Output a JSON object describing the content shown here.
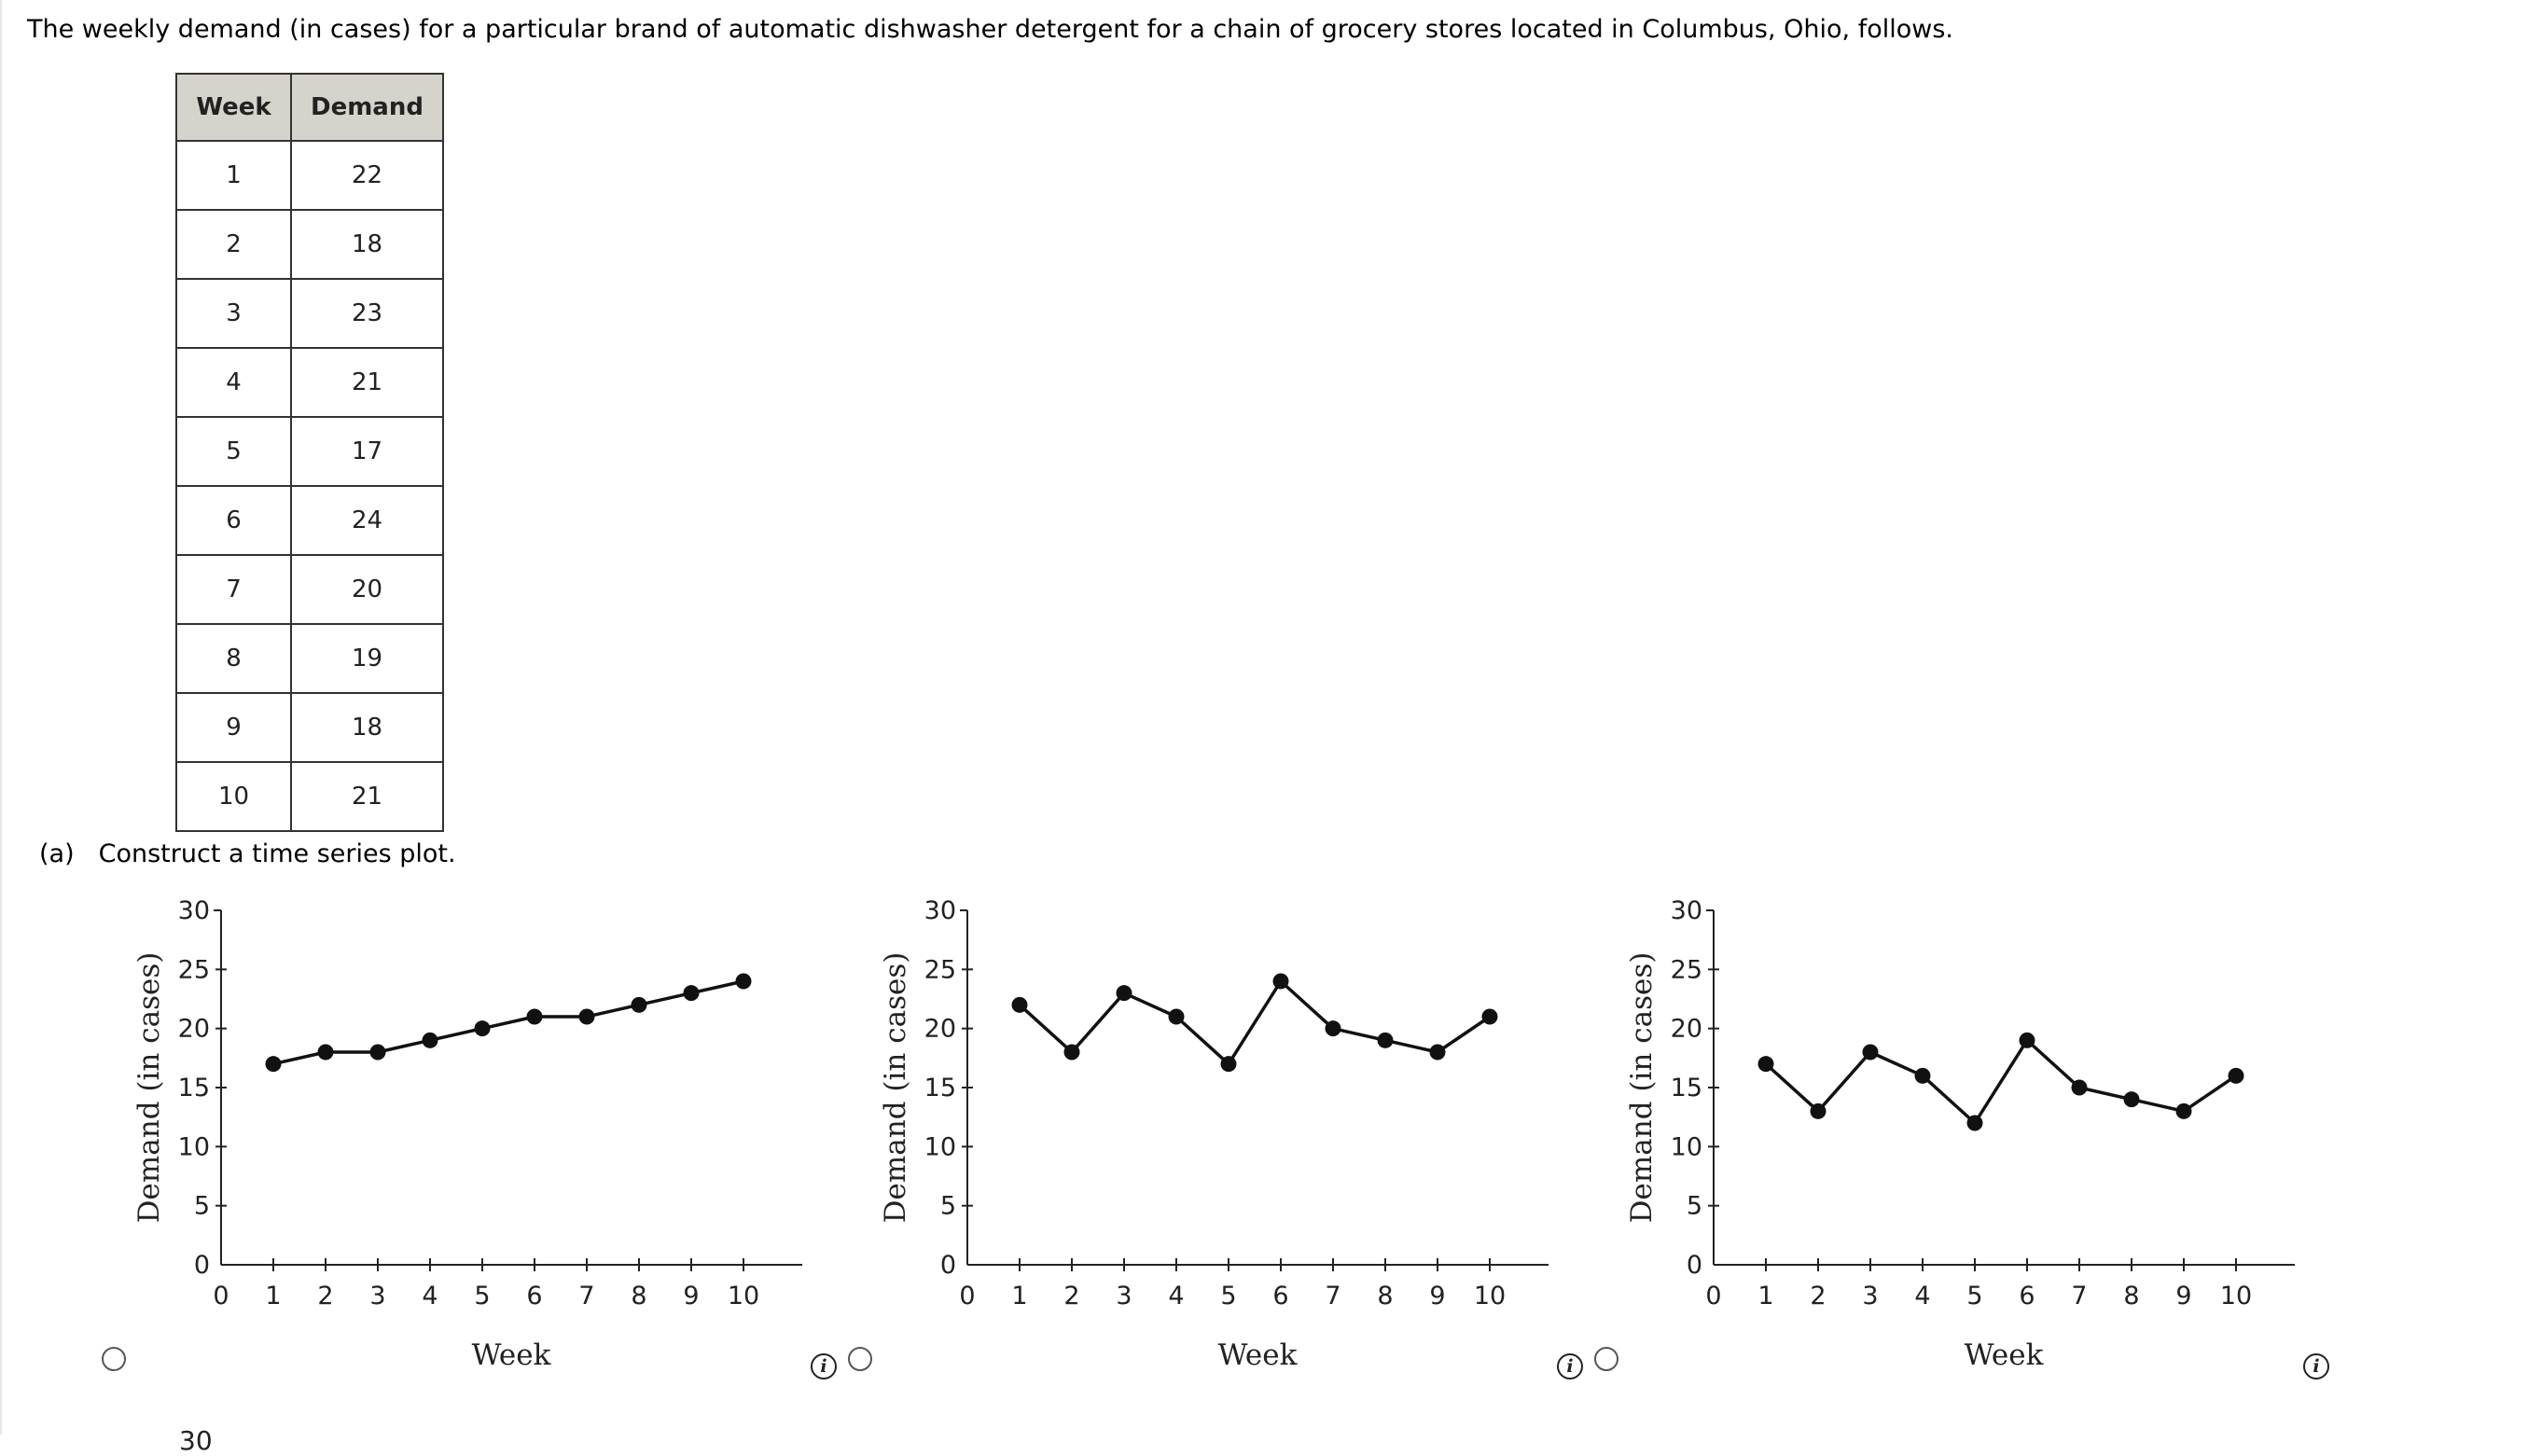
{
  "intro_text": "The weekly demand (in cases) for a particular brand of automatic dishwasher detergent for a chain of grocery stores located in Columbus, Ohio, follows.",
  "table": {
    "headers": [
      "Week",
      "Demand"
    ],
    "rows": [
      [
        "1",
        "22"
      ],
      [
        "2",
        "18"
      ],
      [
        "3",
        "23"
      ],
      [
        "4",
        "21"
      ],
      [
        "5",
        "17"
      ],
      [
        "6",
        "24"
      ],
      [
        "7",
        "20"
      ],
      [
        "8",
        "19"
      ],
      [
        "9",
        "18"
      ],
      [
        "10",
        "21"
      ]
    ]
  },
  "question": {
    "part": "(a)",
    "text": "Construct a time series plot."
  },
  "cutoff_text": "30",
  "chart_data": [
    {
      "type": "line",
      "xlabel": "Week",
      "ylabel": "Demand (in cases)",
      "xlim": [
        0,
        11
      ],
      "ylim": [
        0,
        30
      ],
      "xticks": [
        0,
        1,
        2,
        3,
        4,
        5,
        6,
        7,
        8,
        9,
        10
      ],
      "yticks": [
        0,
        5,
        10,
        15,
        20,
        25,
        30
      ],
      "x": [
        1,
        2,
        3,
        4,
        5,
        6,
        7,
        8,
        9,
        10
      ],
      "y": [
        17,
        18,
        18,
        19,
        20,
        21,
        21,
        22,
        23,
        24
      ]
    },
    {
      "type": "line",
      "xlabel": "Week",
      "ylabel": "Demand (in cases)",
      "xlim": [
        0,
        11
      ],
      "ylim": [
        0,
        30
      ],
      "xticks": [
        0,
        1,
        2,
        3,
        4,
        5,
        6,
        7,
        8,
        9,
        10
      ],
      "yticks": [
        0,
        5,
        10,
        15,
        20,
        25,
        30
      ],
      "x": [
        1,
        2,
        3,
        4,
        5,
        6,
        7,
        8,
        9,
        10
      ],
      "y": [
        22,
        18,
        23,
        21,
        17,
        24,
        20,
        19,
        18,
        21
      ]
    },
    {
      "type": "line",
      "xlabel": "Week",
      "ylabel": "Demand (in cases)",
      "xlim": [
        0,
        11
      ],
      "ylim": [
        0,
        30
      ],
      "xticks": [
        0,
        1,
        2,
        3,
        4,
        5,
        6,
        7,
        8,
        9,
        10
      ],
      "yticks": [
        0,
        5,
        10,
        15,
        20,
        25,
        30
      ],
      "x": [
        1,
        2,
        3,
        4,
        5,
        6,
        7,
        8,
        9,
        10
      ],
      "y": [
        17,
        13,
        18,
        16,
        12,
        19,
        15,
        14,
        13,
        16
      ]
    }
  ],
  "options": [
    {
      "selected": false,
      "info_icon": "info-icon"
    },
    {
      "selected": false,
      "info_icon": "info-icon"
    },
    {
      "selected": false,
      "info_icon": "info-icon"
    }
  ]
}
